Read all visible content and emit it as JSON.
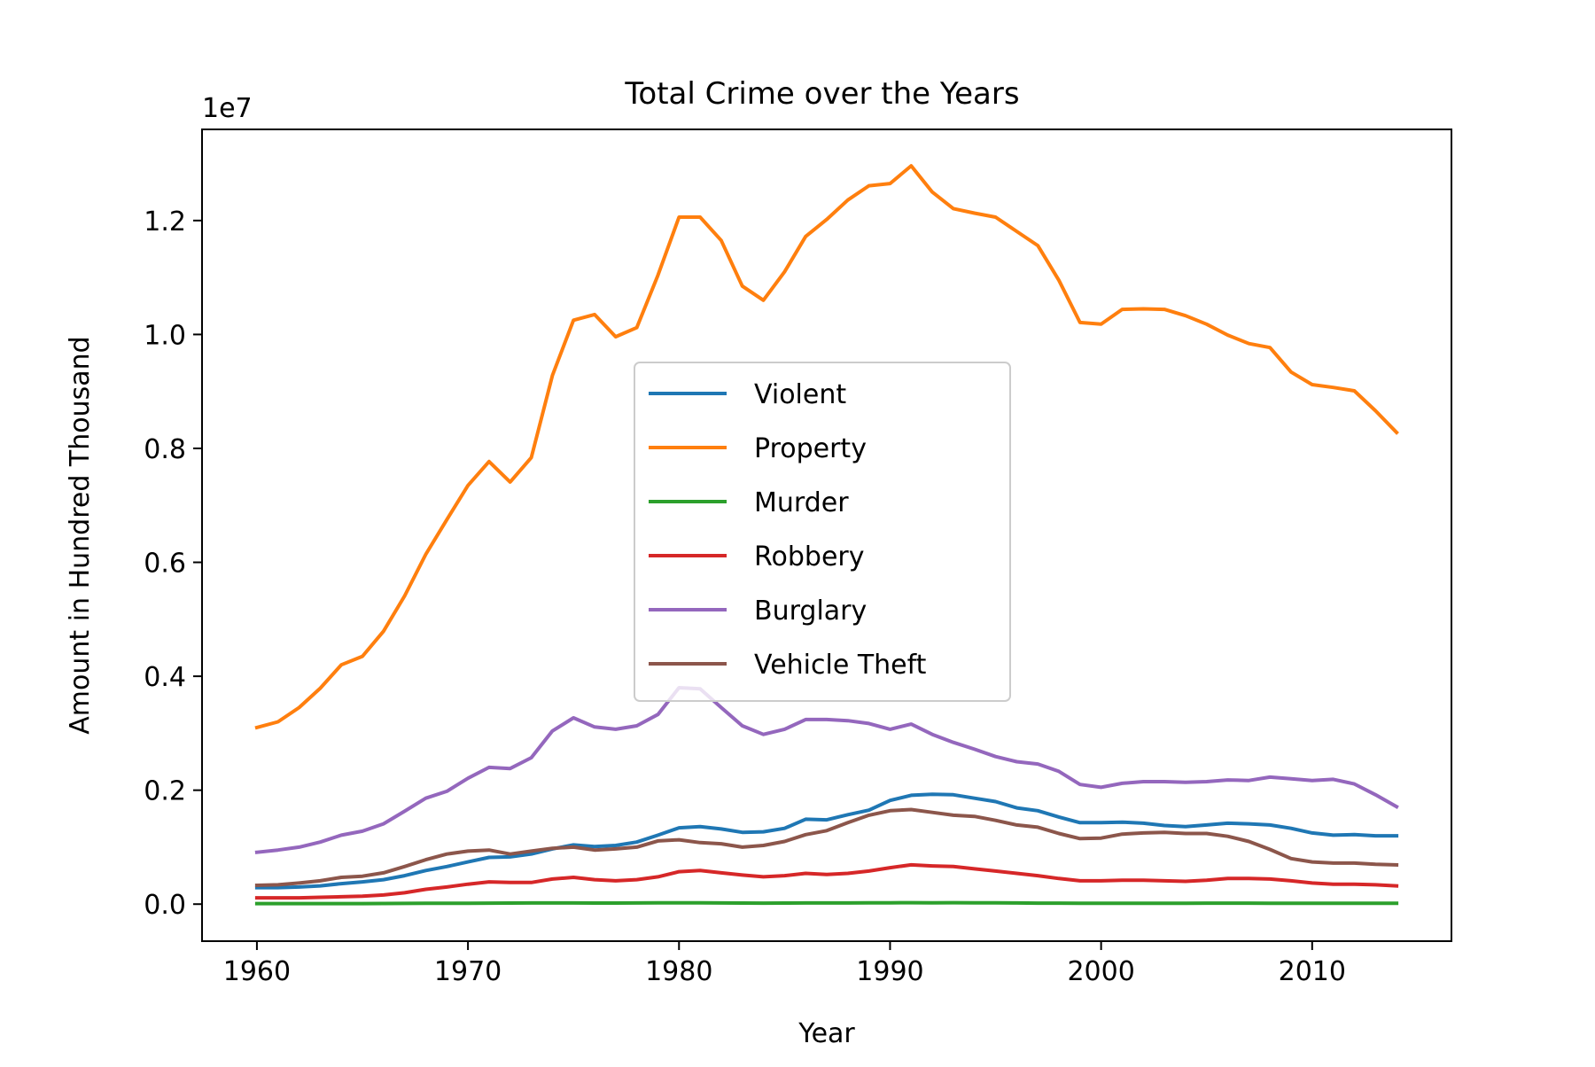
{
  "chart_data": {
    "type": "line",
    "title": "Total Crime over the Years",
    "xlabel": "Year",
    "ylabel": "Amount in Hundred Thousand",
    "y_offset_label": "1e7",
    "xlim": [
      1957.4,
      2016.6
    ],
    "ylim": [
      -0.065,
      1.36
    ],
    "y_scale_note": "values in units of 1e7",
    "x_ticks": [
      1960,
      1970,
      1980,
      1990,
      2000,
      2010
    ],
    "y_ticks": [
      0.0,
      0.2,
      0.4,
      0.6,
      0.8,
      1.0,
      1.2
    ],
    "y_tick_labels": [
      "0.0",
      "0.2",
      "0.4",
      "0.6",
      "0.8",
      "1.0",
      "1.2"
    ],
    "legend_position": "center",
    "grid": false,
    "x": [
      1960,
      1961,
      1962,
      1963,
      1964,
      1965,
      1966,
      1967,
      1968,
      1969,
      1970,
      1971,
      1972,
      1973,
      1974,
      1975,
      1976,
      1977,
      1978,
      1979,
      1980,
      1981,
      1982,
      1983,
      1984,
      1985,
      1986,
      1987,
      1988,
      1989,
      1990,
      1991,
      1992,
      1993,
      1994,
      1995,
      1996,
      1997,
      1998,
      1999,
      2000,
      2001,
      2002,
      2003,
      2004,
      2005,
      2006,
      2007,
      2008,
      2009,
      2010,
      2011,
      2012,
      2013,
      2014
    ],
    "series": [
      {
        "name": "Violent",
        "color": "#1f77b4",
        "values": [
          0.029,
          0.029,
          0.03,
          0.032,
          0.036,
          0.039,
          0.043,
          0.05,
          0.059,
          0.066,
          0.074,
          0.082,
          0.083,
          0.088,
          0.097,
          0.104,
          0.101,
          0.103,
          0.109,
          0.121,
          0.134,
          0.136,
          0.132,
          0.126,
          0.127,
          0.133,
          0.149,
          0.148,
          0.157,
          0.165,
          0.182,
          0.191,
          0.193,
          0.192,
          0.186,
          0.18,
          0.169,
          0.164,
          0.153,
          0.143,
          0.143,
          0.144,
          0.142,
          0.138,
          0.136,
          0.139,
          0.142,
          0.141,
          0.139,
          0.133,
          0.125,
          0.121,
          0.122,
          0.12,
          0.12
        ]
      },
      {
        "name": "Property",
        "color": "#ff7f0e",
        "values": [
          0.31,
          0.32,
          0.345,
          0.379,
          0.42,
          0.435,
          0.479,
          0.541,
          0.614,
          0.675,
          0.735,
          0.777,
          0.741,
          0.784,
          0.928,
          1.025,
          1.035,
          0.996,
          1.012,
          1.104,
          1.206,
          1.206,
          1.165,
          1.085,
          1.06,
          1.11,
          1.172,
          1.202,
          1.236,
          1.261,
          1.265,
          1.296,
          1.25,
          1.221,
          1.213,
          1.206,
          1.181,
          1.156,
          1.095,
          1.021,
          1.018,
          1.044,
          1.045,
          1.044,
          1.033,
          1.018,
          0.999,
          0.984,
          0.977,
          0.934,
          0.912,
          0.907,
          0.901,
          0.866,
          0.828
        ]
      },
      {
        "name": "Murder",
        "color": "#2ca02c",
        "values": [
          0.0009,
          0.0009,
          0.0009,
          0.0009,
          0.001,
          0.001,
          0.0011,
          0.0012,
          0.0014,
          0.0015,
          0.0016,
          0.0018,
          0.0019,
          0.002,
          0.0021,
          0.0021,
          0.0019,
          0.0019,
          0.002,
          0.0022,
          0.0023,
          0.0022,
          0.0021,
          0.0019,
          0.0018,
          0.0019,
          0.0021,
          0.002,
          0.0021,
          0.0022,
          0.0023,
          0.0025,
          0.0024,
          0.0025,
          0.0023,
          0.0022,
          0.002,
          0.0018,
          0.0017,
          0.0016,
          0.0016,
          0.0016,
          0.0016,
          0.0016,
          0.0016,
          0.0017,
          0.0017,
          0.0017,
          0.0016,
          0.0015,
          0.0015,
          0.0015,
          0.0015,
          0.0014,
          0.0014
        ]
      },
      {
        "name": "Robbery",
        "color": "#d62728",
        "values": [
          0.011,
          0.011,
          0.011,
          0.012,
          0.013,
          0.014,
          0.016,
          0.02,
          0.026,
          0.03,
          0.035,
          0.039,
          0.038,
          0.038,
          0.044,
          0.047,
          0.043,
          0.041,
          0.043,
          0.048,
          0.057,
          0.059,
          0.055,
          0.051,
          0.048,
          0.05,
          0.054,
          0.052,
          0.054,
          0.058,
          0.064,
          0.069,
          0.067,
          0.066,
          0.062,
          0.058,
          0.054,
          0.05,
          0.045,
          0.041,
          0.041,
          0.042,
          0.042,
          0.041,
          0.04,
          0.042,
          0.045,
          0.045,
          0.044,
          0.041,
          0.037,
          0.035,
          0.035,
          0.034,
          0.032
        ]
      },
      {
        "name": "Burglary",
        "color": "#9467bd",
        "values": [
          0.091,
          0.095,
          0.1,
          0.109,
          0.121,
          0.128,
          0.141,
          0.163,
          0.186,
          0.198,
          0.221,
          0.24,
          0.238,
          0.257,
          0.304,
          0.327,
          0.311,
          0.307,
          0.313,
          0.333,
          0.38,
          0.378,
          0.345,
          0.313,
          0.298,
          0.307,
          0.324,
          0.324,
          0.322,
          0.317,
          0.307,
          0.316,
          0.298,
          0.284,
          0.272,
          0.259,
          0.25,
          0.246,
          0.233,
          0.21,
          0.205,
          0.212,
          0.215,
          0.215,
          0.214,
          0.215,
          0.218,
          0.217,
          0.223,
          0.22,
          0.217,
          0.219,
          0.211,
          0.192,
          0.171
        ]
      },
      {
        "name": "Vehicle Theft",
        "color": "#8c564b",
        "values": [
          0.033,
          0.034,
          0.037,
          0.041,
          0.047,
          0.049,
          0.055,
          0.066,
          0.078,
          0.088,
          0.093,
          0.095,
          0.088,
          0.093,
          0.098,
          0.1,
          0.095,
          0.097,
          0.1,
          0.111,
          0.113,
          0.108,
          0.106,
          0.1,
          0.103,
          0.11,
          0.122,
          0.129,
          0.143,
          0.156,
          0.164,
          0.166,
          0.161,
          0.156,
          0.154,
          0.147,
          0.139,
          0.135,
          0.124,
          0.115,
          0.116,
          0.123,
          0.125,
          0.126,
          0.124,
          0.124,
          0.119,
          0.11,
          0.096,
          0.08,
          0.074,
          0.072,
          0.072,
          0.07,
          0.069
        ]
      }
    ]
  }
}
